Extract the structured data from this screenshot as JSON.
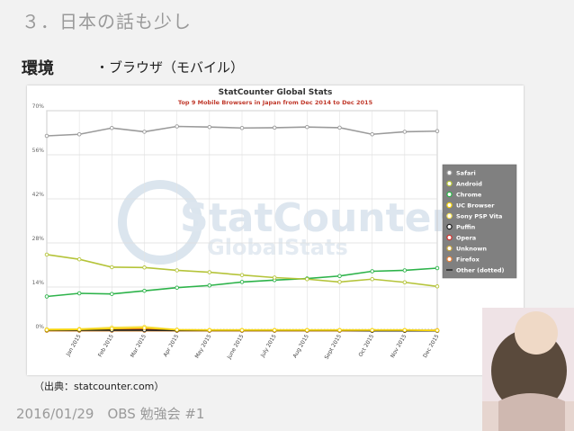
{
  "slide": {
    "title": "３．日本の話も少し",
    "section_label": "環境",
    "subsection_label": "・ブラウザ（モバイル）",
    "source_note": "（出典：statcounter.com）",
    "footer": "2016/01/29　OBS 勉強会 #1",
    "photo_icon": "child-photo"
  },
  "chart_data": {
    "type": "line",
    "title": "StatCounter Global Stats",
    "subtitle": "Top 9 Mobile Browsers in Japan from Dec 2014 to Dec 2015",
    "watermark_line1": "StatCounter",
    "watermark_line2": "GlobalStats",
    "x": [
      "",
      "Jan 2015",
      "Feb 2015",
      "Mar 2015",
      "Apr 2015",
      "May 2015",
      "June 2015",
      "July 2015",
      "Aug 2015",
      "Sept 2015",
      "Oct 2015",
      "Nov 2015",
      "Dec 2015"
    ],
    "y_ticks": [
      "0%",
      "14%",
      "28%",
      "42%",
      "56%",
      "70%"
    ],
    "ylim": [
      0,
      70
    ],
    "grid": true,
    "legend_position": "right",
    "series": [
      {
        "name": "Safari",
        "color": "#9b9b9b",
        "values": [
          62.0,
          62.5,
          64.5,
          63.3,
          65.0,
          64.8,
          64.5,
          64.6,
          64.8,
          64.6,
          62.5,
          63.3,
          63.5
        ]
      },
      {
        "name": "Android",
        "color": "#b5c43a",
        "values": [
          24.3,
          22.8,
          20.3,
          20.2,
          19.3,
          18.7,
          17.8,
          17.0,
          16.5,
          15.6,
          16.5,
          15.5,
          14.2
        ]
      },
      {
        "name": "Chrome",
        "color": "#2db34a",
        "values": [
          11.0,
          12.0,
          11.8,
          12.8,
          13.8,
          14.5,
          15.6,
          16.2,
          16.7,
          17.5,
          19.0,
          19.3,
          20.0
        ]
      },
      {
        "name": "UC Browser",
        "color": "#f5d20a",
        "values": [
          0.4,
          0.5,
          0.8,
          1.0,
          0.4,
          0.3,
          0.3,
          0.3,
          0.3,
          0.3,
          0.3,
          0.3,
          0.2
        ]
      },
      {
        "name": "Sony PSP Vita",
        "color": "#f7e35c",
        "values": [
          0.6,
          0.7,
          1.2,
          1.4,
          0.5,
          0.4,
          0.4,
          0.4,
          0.4,
          0.4,
          0.4,
          0.4,
          0.3
        ]
      },
      {
        "name": "Puffin",
        "color": "#222222",
        "values": [
          0.3,
          0.3,
          0.3,
          0.3,
          0.2,
          0.2,
          0.2,
          0.2,
          0.2,
          0.2,
          0.1,
          0.1,
          0.1
        ]
      },
      {
        "name": "Opera",
        "color": "#d2322d",
        "values": [
          0.5,
          0.6,
          0.6,
          0.6,
          0.3,
          0.3,
          0.3,
          0.3,
          0.3,
          0.3,
          0.3,
          0.3,
          0.3
        ]
      },
      {
        "name": "Unknown",
        "color": "#c8a640",
        "values": [
          0.2,
          0.2,
          0.2,
          0.2,
          0.2,
          0.2,
          0.2,
          0.2,
          0.2,
          0.2,
          0.2,
          0.2,
          0.2
        ]
      },
      {
        "name": "Firefox",
        "color": "#e8823a",
        "values": [
          0.1,
          0.1,
          0.1,
          0.1,
          0.1,
          0.1,
          0.1,
          0.1,
          0.1,
          0.1,
          0.1,
          0.1,
          0.1
        ]
      },
      {
        "name": "Other (dotted)",
        "color": "#666666",
        "dotted": true,
        "values": [
          0.4,
          0.4,
          0.4,
          0.4,
          0.4,
          0.4,
          0.4,
          0.4,
          0.4,
          0.4,
          0.4,
          0.4,
          0.4
        ]
      }
    ]
  }
}
